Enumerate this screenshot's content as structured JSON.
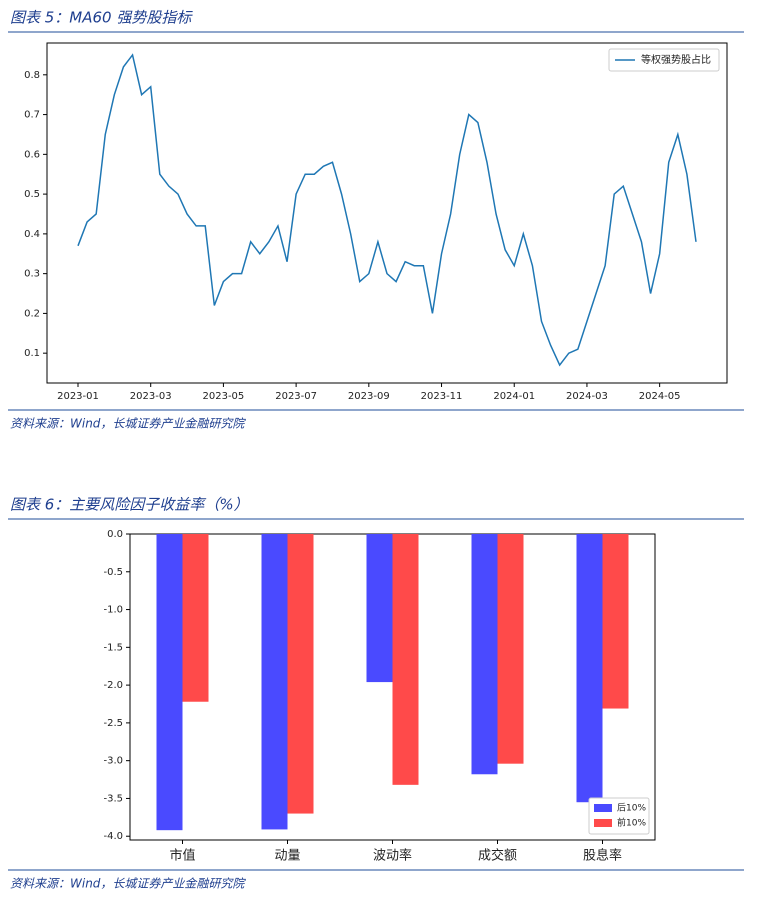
{
  "chart_data": [
    {
      "type": "line",
      "title": "图表 5：MA60 强势股指标",
      "source": "资料来源：Wind，长城证券产业金融研究院",
      "categories": [
        "2023-01",
        null,
        null,
        null,
        null,
        null,
        null,
        null,
        "2023-03",
        null,
        null,
        null,
        null,
        null,
        null,
        null,
        "2023-05",
        null,
        null,
        null,
        null,
        null,
        null,
        null,
        "2023-07",
        null,
        null,
        null,
        null,
        null,
        null,
        null,
        "2023-09",
        null,
        null,
        null,
        null,
        null,
        null,
        null,
        "2023-11",
        null,
        null,
        null,
        null,
        null,
        null,
        null,
        "2024-01",
        null,
        null,
        null,
        null,
        null,
        null,
        null,
        "2024-03",
        null,
        null,
        null,
        null,
        null,
        null,
        null,
        "2024-05",
        null,
        null,
        null,
        null
      ],
      "series": [
        {
          "name": "等权强势股占比",
          "color": "#1f77b4",
          "values": [
            0.37,
            0.43,
            0.45,
            0.65,
            0.75,
            0.82,
            0.85,
            0.75,
            0.77,
            0.55,
            0.52,
            0.5,
            0.45,
            0.42,
            0.42,
            0.22,
            0.28,
            0.3,
            0.3,
            0.38,
            0.35,
            0.38,
            0.42,
            0.33,
            0.5,
            0.55,
            0.55,
            0.57,
            0.58,
            0.5,
            0.4,
            0.28,
            0.3,
            0.38,
            0.3,
            0.28,
            0.33,
            0.32,
            0.32,
            0.2,
            0.35,
            0.45,
            0.6,
            0.7,
            0.68,
            0.58,
            0.45,
            0.36,
            0.32,
            0.4,
            0.32,
            0.18,
            0.12,
            0.07,
            0.1,
            0.11,
            0.18,
            0.25,
            0.32,
            0.5,
            0.52,
            0.45,
            0.38,
            0.25,
            0.35,
            0.58,
            0.65,
            0.55,
            0.38
          ]
        }
      ],
      "ylim": [
        0.025,
        0.88
      ],
      "yticks": [
        0.1,
        0.2,
        0.3,
        0.4,
        0.5,
        0.6,
        0.7,
        0.8
      ],
      "legend": "upper right"
    },
    {
      "type": "bar",
      "title": "图表 6：主要风险因子收益率（%）",
      "source": "资料来源：Wind，长城证券产业金融研究院",
      "categories": [
        "市值",
        "动量",
        "波动率",
        "成交额",
        "股息率"
      ],
      "series": [
        {
          "name": "后10%",
          "color": "#4a4aff",
          "values": [
            -3.92,
            -3.91,
            -1.96,
            -3.18,
            -3.55
          ]
        },
        {
          "name": "前10%",
          "color": "#ff4a4a",
          "values": [
            -2.22,
            -3.7,
            -3.32,
            -3.04,
            -2.31
          ]
        }
      ],
      "ylim": [
        -4.05,
        0
      ],
      "yticks": [
        {
          "value": 0,
          "label": "0.0"
        },
        -0.5,
        {
          "value": -1,
          "label": "-1.0"
        },
        -1.5,
        {
          "value": -2,
          "label": "-2.0"
        },
        -2.5,
        {
          "value": -3,
          "label": "-3.0"
        },
        -3.5,
        {
          "value": -4,
          "label": "-4.0"
        }
      ],
      "legend": "lower right"
    }
  ]
}
